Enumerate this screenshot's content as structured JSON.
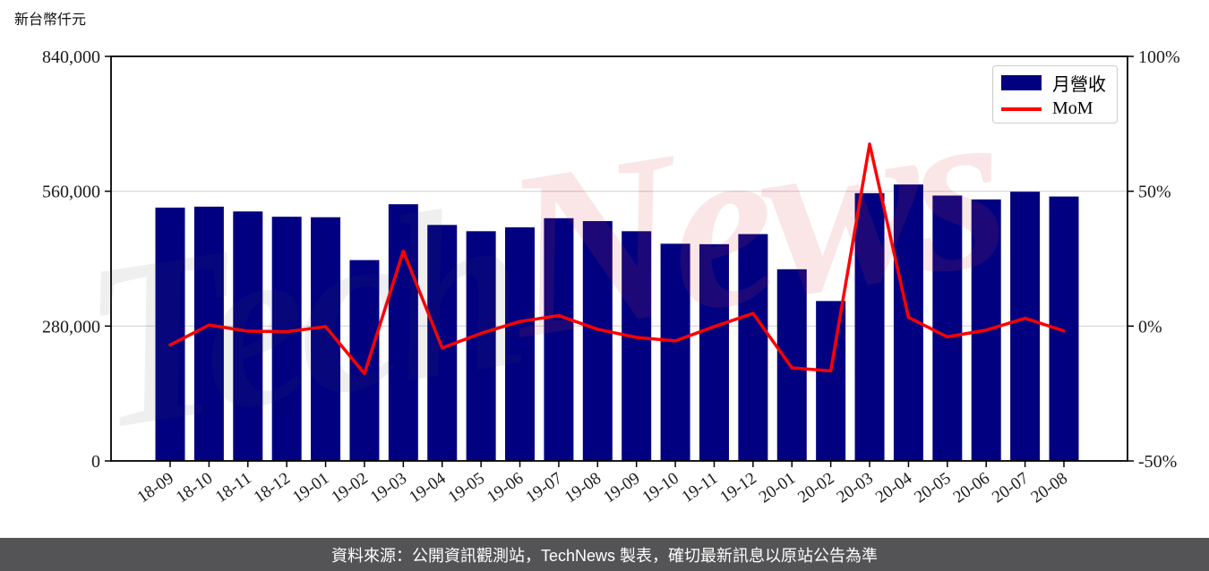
{
  "page": {
    "y_axis_unit_label": "新台幣仟元",
    "footer_text": "資料來源：公開資訊觀測站，TechNews 製表，確切最新訊息以原站公告為準",
    "watermark": {
      "part1": "Tech",
      "part2": "News"
    }
  },
  "colors": {
    "bar": "#000080",
    "line": "#ff0000",
    "grid": "#d4d4d4",
    "axis": "#000000",
    "tick_text": "#1a1a1a",
    "footer_bg": "#545456",
    "footer_text": "#ffffff"
  },
  "chart_data": {
    "type": "bar",
    "combo": "bar+line",
    "title": "",
    "xlabel": "",
    "ylabel_left": "新台幣仟元",
    "ylabel_right": "%",
    "grid": "horizontal, light gray, at inner left-axis ticks",
    "categories": [
      "18-09",
      "18-10",
      "18-11",
      "18-12",
      "19-01",
      "19-02",
      "19-03",
      "19-04",
      "19-05",
      "19-06",
      "19-07",
      "19-08",
      "19-09",
      "19-10",
      "19-11",
      "19-12",
      "20-01",
      "20-02",
      "20-03",
      "20-04",
      "20-05",
      "20-06",
      "20-07",
      "20-08"
    ],
    "series": [
      {
        "name": "月營收",
        "type": "bar",
        "axis": "left",
        "color": "#000080",
        "unit": "新台幣仟元",
        "values": [
          526000,
          528000,
          518000,
          507000,
          506000,
          417000,
          533000,
          490000,
          477000,
          485000,
          504000,
          498000,
          477000,
          451000,
          450000,
          471000,
          398000,
          332000,
          556000,
          574000,
          551000,
          543000,
          559000,
          549000
        ]
      },
      {
        "name": "MoM",
        "type": "line",
        "axis": "right",
        "color": "#ff0000",
        "unit": "%",
        "values": [
          -7.0,
          0.4,
          -1.9,
          -2.1,
          -0.2,
          -17.6,
          27.8,
          -8.1,
          -2.7,
          1.7,
          3.9,
          -1.2,
          -4.2,
          -5.5,
          -0.2,
          4.7,
          -15.5,
          -16.6,
          67.5,
          3.2,
          -4.0,
          -1.5,
          2.9,
          -1.8
        ]
      }
    ],
    "left_axis": {
      "range": [
        0,
        840000
      ],
      "ticks": [
        0,
        280000,
        560000,
        840000
      ],
      "tick_labels": [
        "0",
        "280,000",
        "560,000",
        "840,000"
      ]
    },
    "right_axis": {
      "range": [
        -50,
        100
      ],
      "ticks": [
        -50,
        0,
        50,
        100
      ],
      "tick_labels": [
        "-50%",
        "0%",
        "50%",
        "100%"
      ]
    },
    "legend": {
      "position": "upper right",
      "entries": [
        "月營收",
        "MoM"
      ]
    }
  }
}
